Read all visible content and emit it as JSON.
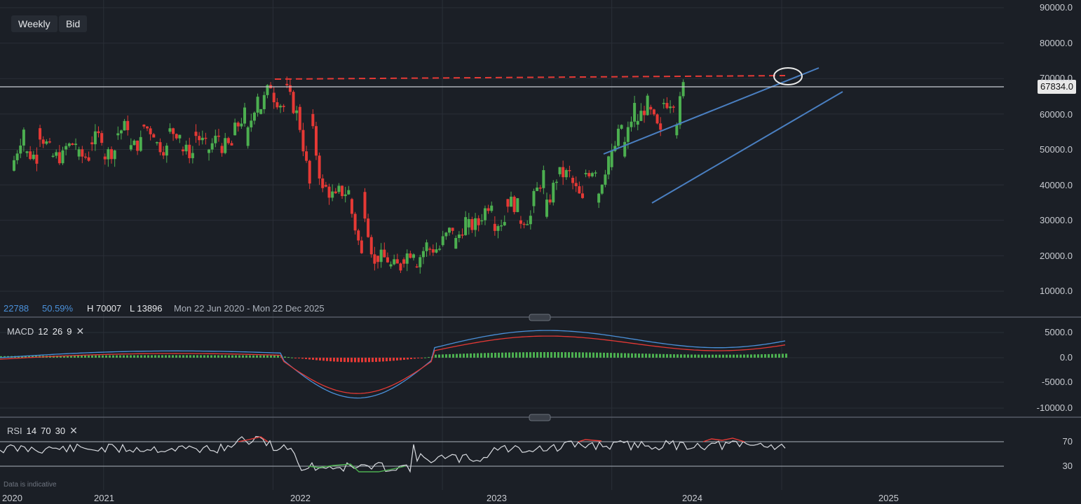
{
  "toolbar": {
    "timeframe": "Weekly",
    "price_type": "Bid"
  },
  "info_bar": {
    "value1": "22788",
    "value2": "50.59%",
    "high": "H 70007",
    "low": "L 13896",
    "range": "Mon 22 Jun 2020 - Mon 22 Dec 2025"
  },
  "price_tag": "67834.0",
  "price_axis": [
    "90000.0",
    "80000.0",
    "70000.0",
    "60000.0",
    "50000.0",
    "40000.0",
    "30000.0",
    "20000.0",
    "10000.0"
  ],
  "macd": {
    "label": "MACD",
    "fast": "12",
    "slow": "26",
    "signal": "9",
    "axis": [
      "5000.0",
      "0.0",
      "-5000.0",
      "-10000.0"
    ]
  },
  "rsi": {
    "label": "RSI",
    "period": "14",
    "upper": "70",
    "lower": "30",
    "axis": [
      "70",
      "30"
    ]
  },
  "time_axis": [
    "2020",
    "2021",
    "2022",
    "2023",
    "2024",
    "2025"
  ],
  "disclaimer": "Data is indicative",
  "colors": {
    "up": "#4caf50",
    "down": "#e53935",
    "macd_line": "#4a90d9",
    "signal_line": "#e53935",
    "trendline": "#4a7fc1",
    "resistance": "#e53935",
    "background": "#1b1f26"
  },
  "chart_data": {
    "type": "candlestick",
    "timeframe": "weekly",
    "x_range": [
      "2020-06-22",
      "2025-12-22"
    ],
    "ylim": [
      8000,
      92000
    ],
    "high": 70007,
    "low": 13896,
    "last_price": 67834,
    "series": [
      {
        "values": [
          {
            "d": "2020-06-22",
            "o": 44000,
            "c": 49000
          },
          {
            "d": "2020-07-20",
            "o": 49000,
            "c": 56000
          },
          {
            "d": "2020-08-17",
            "o": 56000,
            "c": 48000
          },
          {
            "d": "2020-09-14",
            "o": 48000,
            "c": 50000
          },
          {
            "d": "2020-10-12",
            "o": 50000,
            "c": 48000
          },
          {
            "d": "2020-11-09",
            "o": 48000,
            "c": 52000
          },
          {
            "d": "2020-12-07",
            "o": 52000,
            "c": 48000
          },
          {
            "d": "2021-01-04",
            "o": 48000,
            "c": 54000
          },
          {
            "d": "2021-02-01",
            "o": 54000,
            "c": 50000
          },
          {
            "d": "2021-03-01",
            "o": 50000,
            "c": 57000
          },
          {
            "d": "2021-03-29",
            "o": 57000,
            "c": 52000
          },
          {
            "d": "2021-04-26",
            "o": 52000,
            "c": 55000
          },
          {
            "d": "2021-05-24",
            "o": 55000,
            "c": 50000
          },
          {
            "d": "2021-06-21",
            "o": 50000,
            "c": 55000
          },
          {
            "d": "2021-07-19",
            "o": 55000,
            "c": 49000
          },
          {
            "d": "2021-08-16",
            "o": 49000,
            "c": 51000
          },
          {
            "d": "2021-09-13",
            "o": 51000,
            "c": 54000
          },
          {
            "d": "2021-10-11",
            "o": 54000,
            "c": 51000
          },
          {
            "d": "2021-11-08",
            "o": 51000,
            "c": 60000
          },
          {
            "d": "2021-12-06",
            "o": 60000,
            "c": 66000
          },
          {
            "d": "2022-01-03",
            "o": 66000,
            "c": 68500
          },
          {
            "d": "2022-01-31",
            "o": 68500,
            "c": 62000
          },
          {
            "d": "2022-02-28",
            "o": 62000,
            "c": 60000
          },
          {
            "d": "2022-03-28",
            "o": 60000,
            "c": 40000
          },
          {
            "d": "2022-04-25",
            "o": 40000,
            "c": 38000
          },
          {
            "d": "2022-05-23",
            "o": 38000,
            "c": 36000
          },
          {
            "d": "2022-06-20",
            "o": 36000,
            "c": 38000
          },
          {
            "d": "2022-07-18",
            "o": 38000,
            "c": 20000
          },
          {
            "d": "2022-08-15",
            "o": 20000,
            "c": 17000
          },
          {
            "d": "2022-09-12",
            "o": 17000,
            "c": 19000
          },
          {
            "d": "2022-10-10",
            "o": 19000,
            "c": 17000
          },
          {
            "d": "2022-11-07",
            "o": 17000,
            "c": 22000
          },
          {
            "d": "2022-12-05",
            "o": 22000,
            "c": 23000
          },
          {
            "d": "2023-01-02",
            "o": 23000,
            "c": 22000
          },
          {
            "d": "2023-01-30",
            "o": 22000,
            "c": 28000
          },
          {
            "d": "2023-02-27",
            "o": 28000,
            "c": 30000
          },
          {
            "d": "2023-03-27",
            "o": 30000,
            "c": 29000
          },
          {
            "d": "2023-04-24",
            "o": 29000,
            "c": 36000
          },
          {
            "d": "2023-05-22",
            "o": 36000,
            "c": 30000
          },
          {
            "d": "2023-06-19",
            "o": 30000,
            "c": 34000
          },
          {
            "d": "2023-07-17",
            "o": 34000,
            "c": 31000
          },
          {
            "d": "2023-08-14",
            "o": 31000,
            "c": 43000
          },
          {
            "d": "2023-09-11",
            "o": 43000,
            "c": 42000
          },
          {
            "d": "2023-10-09",
            "o": 42000,
            "c": 43000
          },
          {
            "d": "2023-11-06",
            "o": 43000,
            "c": 35000
          },
          {
            "d": "2023-12-04",
            "o": 35000,
            "c": 45000
          },
          {
            "d": "2024-01-01",
            "o": 45000,
            "c": 48000
          },
          {
            "d": "2024-01-29",
            "o": 48000,
            "c": 57000
          },
          {
            "d": "2024-02-26",
            "o": 57000,
            "c": 62000
          },
          {
            "d": "2024-03-25",
            "o": 62000,
            "c": 63000
          },
          {
            "d": "2024-04-22",
            "o": 63000,
            "c": 54000
          },
          {
            "d": "2024-05-20",
            "o": 54000,
            "c": 64000
          },
          {
            "d": "2024-06-10",
            "o": 64000,
            "c": 67834
          }
        ]
      }
    ]
  }
}
